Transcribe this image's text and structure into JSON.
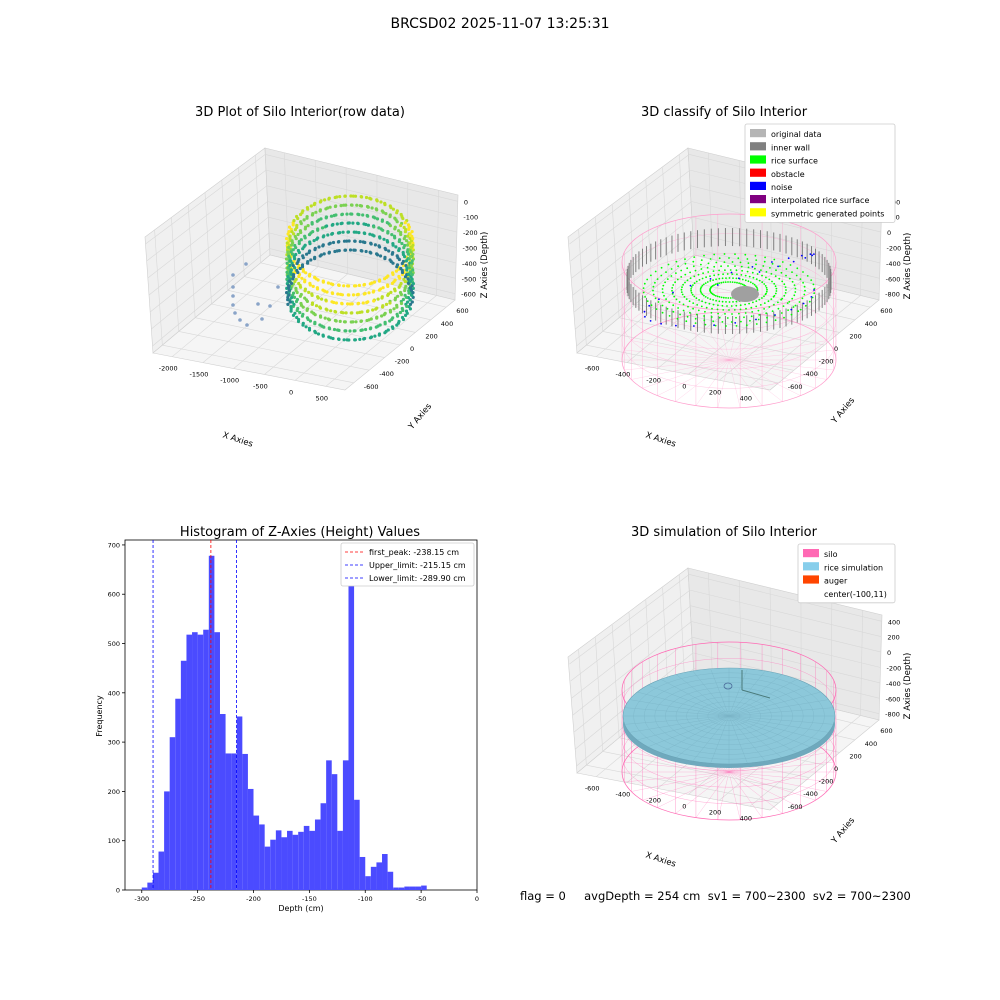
{
  "figure": {
    "suptitle": "BRCSD02 2025-11-07 13:25:31",
    "footer": "flag = 0     avgDepth = 254 cm  sv1 = 700~2300  sv2 = 700~2300"
  },
  "chart_data": [
    {
      "type": "scatter3d",
      "title": "3D Plot of Silo Interior(row data)",
      "xlabel": "X Axies",
      "ylabel": "Y Axies",
      "zlabel": "Z Axies (Depth)",
      "x_ticks": [
        "-2000",
        "-1500",
        "-1000",
        "-500",
        "0",
        "500"
      ],
      "y_ticks": [
        "-600",
        "-400",
        "-200",
        "0",
        "200",
        "400",
        "600"
      ],
      "z_ticks": [
        "0",
        "-100",
        "-200",
        "-300",
        "-400",
        "-500",
        "-600"
      ],
      "colormap": "viridis",
      "grid": true
    },
    {
      "type": "scatter3d",
      "title": "3D classify of Silo Interior",
      "xlabel": "X Axies",
      "ylabel": "Y Axies",
      "zlabel": "Z Axies (Depth)",
      "x_ticks": [
        "-600",
        "-400",
        "-200",
        "0",
        "200",
        "400"
      ],
      "y_ticks": [
        "-600",
        "-400",
        "-200",
        "0",
        "200",
        "400",
        "600"
      ],
      "z_ticks": [
        "400",
        "200",
        "0",
        "-200",
        "-400",
        "-600",
        "-800"
      ],
      "legend": [
        {
          "label": "original data",
          "color": "#b5b5b5"
        },
        {
          "label": "inner wall",
          "color": "#808080"
        },
        {
          "label": "rice surface",
          "color": "#00ff00"
        },
        {
          "label": "obstacle",
          "color": "#ff0000"
        },
        {
          "label": "noise",
          "color": "#0000ff"
        },
        {
          "label": "interpolated rice surface",
          "color": "#800080"
        },
        {
          "label": "symmetric generated points",
          "color": "#ffff00"
        }
      ],
      "legend_position": "top-right",
      "grid": true
    },
    {
      "type": "histogram",
      "title": "Histogram of Z-Axies (Height) Values",
      "xlabel": "Depth (cm)",
      "ylabel": "Frequency",
      "xlim": [
        -315,
        0
      ],
      "ylim": [
        0,
        710
      ],
      "x_ticks": [
        -300,
        -250,
        -200,
        -150,
        -100,
        -50,
        0
      ],
      "y_ticks": [
        0,
        100,
        200,
        300,
        400,
        500,
        600,
        700
      ],
      "bar_color": "#4b4bff",
      "bins": [
        {
          "x0": -300,
          "x1": -295,
          "count": 5
        },
        {
          "x0": -295,
          "x1": -290,
          "count": 15
        },
        {
          "x0": -290,
          "x1": -285,
          "count": 35
        },
        {
          "x0": -285,
          "x1": -280,
          "count": 78
        },
        {
          "x0": -280,
          "x1": -275,
          "count": 200
        },
        {
          "x0": -275,
          "x1": -270,
          "count": 310
        },
        {
          "x0": -270,
          "x1": -265,
          "count": 388
        },
        {
          "x0": -265,
          "x1": -260,
          "count": 465
        },
        {
          "x0": -260,
          "x1": -255,
          "count": 518
        },
        {
          "x0": -255,
          "x1": -250,
          "count": 523
        },
        {
          "x0": -250,
          "x1": -245,
          "count": 518
        },
        {
          "x0": -245,
          "x1": -240,
          "count": 528
        },
        {
          "x0": -240,
          "x1": -235,
          "count": 678
        },
        {
          "x0": -235,
          "x1": -230,
          "count": 523
        },
        {
          "x0": -230,
          "x1": -225,
          "count": 357
        },
        {
          "x0": -225,
          "x1": -220,
          "count": 277
        },
        {
          "x0": -220,
          "x1": -215,
          "count": 277
        },
        {
          "x0": -215,
          "x1": -210,
          "count": 352
        },
        {
          "x0": -210,
          "x1": -205,
          "count": 276
        },
        {
          "x0": -205,
          "x1": -200,
          "count": 205
        },
        {
          "x0": -200,
          "x1": -195,
          "count": 151
        },
        {
          "x0": -195,
          "x1": -190,
          "count": 133
        },
        {
          "x0": -190,
          "x1": -185,
          "count": 88
        },
        {
          "x0": -185,
          "x1": -180,
          "count": 102
        },
        {
          "x0": -180,
          "x1": -175,
          "count": 121
        },
        {
          "x0": -175,
          "x1": -170,
          "count": 107
        },
        {
          "x0": -170,
          "x1": -165,
          "count": 120
        },
        {
          "x0": -165,
          "x1": -160,
          "count": 112
        },
        {
          "x0": -160,
          "x1": -155,
          "count": 118
        },
        {
          "x0": -155,
          "x1": -150,
          "count": 130
        },
        {
          "x0": -150,
          "x1": -145,
          "count": 120
        },
        {
          "x0": -145,
          "x1": -140,
          "count": 143
        },
        {
          "x0": -140,
          "x1": -135,
          "count": 176
        },
        {
          "x0": -135,
          "x1": -130,
          "count": 263
        },
        {
          "x0": -130,
          "x1": -125,
          "count": 235
        },
        {
          "x0": -125,
          "x1": -120,
          "count": 120
        },
        {
          "x0": -120,
          "x1": -115,
          "count": 263
        },
        {
          "x0": -115,
          "x1": -110,
          "count": 640
        },
        {
          "x0": -110,
          "x1": -105,
          "count": 183
        },
        {
          "x0": -105,
          "x1": -100,
          "count": 67
        },
        {
          "x0": -100,
          "x1": -95,
          "count": 28
        },
        {
          "x0": -95,
          "x1": -90,
          "count": 47
        },
        {
          "x0": -90,
          "x1": -85,
          "count": 56
        },
        {
          "x0": -85,
          "x1": -80,
          "count": 73
        },
        {
          "x0": -80,
          "x1": -75,
          "count": 37
        },
        {
          "x0": -75,
          "x1": -70,
          "count": 5
        },
        {
          "x0": -70,
          "x1": -65,
          "count": 5
        },
        {
          "x0": -65,
          "x1": -60,
          "count": 7
        },
        {
          "x0": -60,
          "x1": -55,
          "count": 7
        },
        {
          "x0": -55,
          "x1": -50,
          "count": 7
        },
        {
          "x0": -50,
          "x1": -45,
          "count": 9
        }
      ],
      "vlines": [
        {
          "label": "first_peak: -238.15 cm",
          "x": -238.15,
          "color": "#ff0000"
        },
        {
          "label": "Upper_limit: -215.15 cm",
          "x": -215.15,
          "color": "#0000ff"
        },
        {
          "label": "Lower_limit: -289.90 cm",
          "x": -289.9,
          "color": "#0000ff"
        }
      ],
      "legend_position": "top-right",
      "grid": false
    },
    {
      "type": "surface3d",
      "title": "3D simulation of Silo Interior",
      "xlabel": "X Axies",
      "ylabel": "Y Axies",
      "zlabel": "Z Axies (Depth)",
      "x_ticks": [
        "-600",
        "-400",
        "-200",
        "0",
        "200",
        "400"
      ],
      "y_ticks": [
        "-600",
        "-400",
        "-200",
        "0",
        "200",
        "400",
        "600"
      ],
      "z_ticks": [
        "400",
        "200",
        "0",
        "-200",
        "-400",
        "-600",
        "-800"
      ],
      "legend": [
        {
          "label": "silo",
          "color": "#ff69b4"
        },
        {
          "label": "rice simulation",
          "color": "#87ceeb"
        },
        {
          "label": "auger",
          "color": "#ff4500"
        },
        {
          "label": "center(-100,11)",
          "color": ""
        }
      ],
      "legend_position": "top-right",
      "grid": true
    }
  ]
}
